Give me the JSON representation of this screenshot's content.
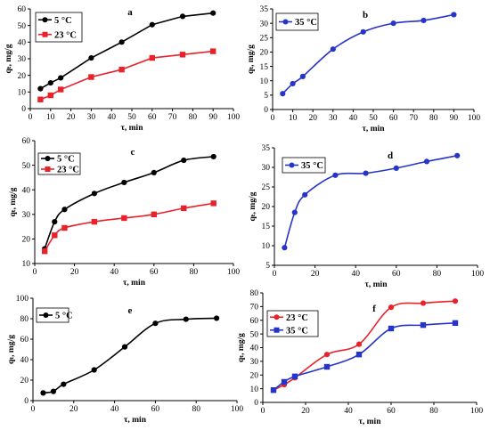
{
  "chart_data": [
    {
      "panel": "a",
      "type": "line",
      "xlabel": "τ, min",
      "ylabel": "qₜ, mg/g",
      "xlim": [
        0,
        100
      ],
      "ylim": [
        0,
        60
      ],
      "xticks": [
        0,
        10,
        20,
        30,
        40,
        50,
        60,
        70,
        80,
        90,
        100
      ],
      "yticks": [
        0,
        10,
        20,
        30,
        40,
        50,
        60
      ],
      "legend_position": "top-left",
      "curve": "straight",
      "series": [
        {
          "name": "5 °C",
          "color": "#000000",
          "marker": "circle",
          "x": [
            5,
            10,
            15,
            30,
            45,
            60,
            75,
            90
          ],
          "y": [
            12,
            15.5,
            18.5,
            30.5,
            40,
            50.5,
            55.5,
            57.5
          ]
        },
        {
          "name": "23 °C",
          "color": "#e8222a",
          "marker": "square",
          "x": [
            5,
            10,
            15,
            30,
            45,
            60,
            75,
            90
          ],
          "y": [
            5.5,
            8,
            11.5,
            19,
            23.5,
            30.5,
            32.5,
            34.5
          ]
        }
      ]
    },
    {
      "panel": "b",
      "type": "line",
      "xlabel": "τ, min",
      "ylabel": "qₜ, mg/g",
      "xlim": [
        0,
        100
      ],
      "ylim": [
        0,
        35
      ],
      "xticks": [
        0,
        10,
        20,
        30,
        40,
        50,
        60,
        70,
        80,
        90,
        100
      ],
      "yticks": [
        0,
        5,
        10,
        15,
        20,
        25,
        30,
        35
      ],
      "legend_position": "top-left",
      "curve": "smooth",
      "series": [
        {
          "name": "35 °C",
          "color": "#2634c8",
          "marker": "circle",
          "x": [
            5,
            10,
            15,
            30,
            45,
            60,
            75,
            90
          ],
          "y": [
            5.5,
            9,
            11.5,
            21,
            27,
            30,
            31,
            33
          ]
        }
      ]
    },
    {
      "panel": "c",
      "type": "line",
      "xlabel": "τ, min",
      "ylabel": "qₜ, mg/g",
      "xlim": [
        0,
        100
      ],
      "ylim": [
        10,
        60
      ],
      "xticks": [
        0,
        20,
        40,
        60,
        80,
        100
      ],
      "yticks": [
        10,
        20,
        30,
        40,
        50,
        60
      ],
      "legend_position": "top-left",
      "curve": "smooth",
      "series": [
        {
          "name": "5 °C",
          "color": "#000000",
          "marker": "circle",
          "x": [
            5,
            10,
            15,
            30,
            45,
            60,
            75,
            90
          ],
          "y": [
            16,
            27,
            32,
            38.5,
            43,
            47,
            52,
            53.5
          ]
        },
        {
          "name": "23 °C",
          "color": "#e8222a",
          "marker": "square",
          "x": [
            5,
            10,
            15,
            30,
            45,
            60,
            75,
            90
          ],
          "y": [
            15,
            21.5,
            24.5,
            27,
            28.5,
            30,
            32.5,
            34.5
          ]
        }
      ]
    },
    {
      "panel": "d",
      "type": "line",
      "xlabel": "τ, min",
      "ylabel": "qₜ, mg/g",
      "xlim": [
        0,
        100
      ],
      "ylim": [
        5,
        35
      ],
      "xticks": [
        0,
        20,
        40,
        60,
        80,
        100
      ],
      "yticks": [
        5,
        10,
        15,
        20,
        25,
        30,
        35
      ],
      "legend_position": "top-left",
      "curve": "smooth",
      "series": [
        {
          "name": "35 °C",
          "color": "#2634c8",
          "marker": "circle",
          "x": [
            5,
            10,
            15,
            30,
            45,
            60,
            75,
            90
          ],
          "y": [
            9.5,
            18.5,
            23,
            28,
            28.5,
            29.8,
            31.5,
            33
          ]
        }
      ]
    },
    {
      "panel": "e",
      "type": "line",
      "xlabel": "τ, min",
      "ylabel": "qₜ, mg/g",
      "xlim": [
        0,
        100
      ],
      "ylim": [
        0,
        100
      ],
      "xticks": [
        0,
        20,
        40,
        60,
        80,
        100
      ],
      "yticks": [
        0,
        20,
        40,
        60,
        80,
        100
      ],
      "legend_position": "top-left",
      "curve": "smooth",
      "series": [
        {
          "name": "5 °C",
          "color": "#000000",
          "marker": "circle",
          "x": [
            5,
            10,
            15,
            30,
            45,
            60,
            75,
            90
          ],
          "y": [
            7.5,
            9,
            16,
            30,
            52.5,
            75.5,
            79.5,
            80.5
          ]
        }
      ]
    },
    {
      "panel": "f",
      "type": "line",
      "xlabel": "τ, min",
      "ylabel": "qₜ, mg/g",
      "xlim": [
        0,
        100
      ],
      "ylim": [
        0,
        80
      ],
      "xticks": [
        0,
        20,
        40,
        60,
        80,
        100
      ],
      "yticks": [
        0,
        10,
        20,
        30,
        40,
        50,
        60,
        70,
        80
      ],
      "legend_position": "top-left",
      "curve": "smooth",
      "series": [
        {
          "name": "23 °C",
          "color": "#e8222a",
          "marker": "circle",
          "x": [
            5,
            10,
            15,
            30,
            45,
            60,
            75,
            90
          ],
          "y": [
            9,
            13,
            18,
            35,
            42.5,
            69.5,
            72.5,
            74
          ]
        },
        {
          "name": "35 °C",
          "color": "#2634c8",
          "marker": "square",
          "x": [
            5,
            10,
            15,
            30,
            45,
            60,
            75,
            90
          ],
          "y": [
            9,
            15,
            19,
            26,
            35,
            54,
            56.5,
            58
          ]
        }
      ]
    }
  ]
}
